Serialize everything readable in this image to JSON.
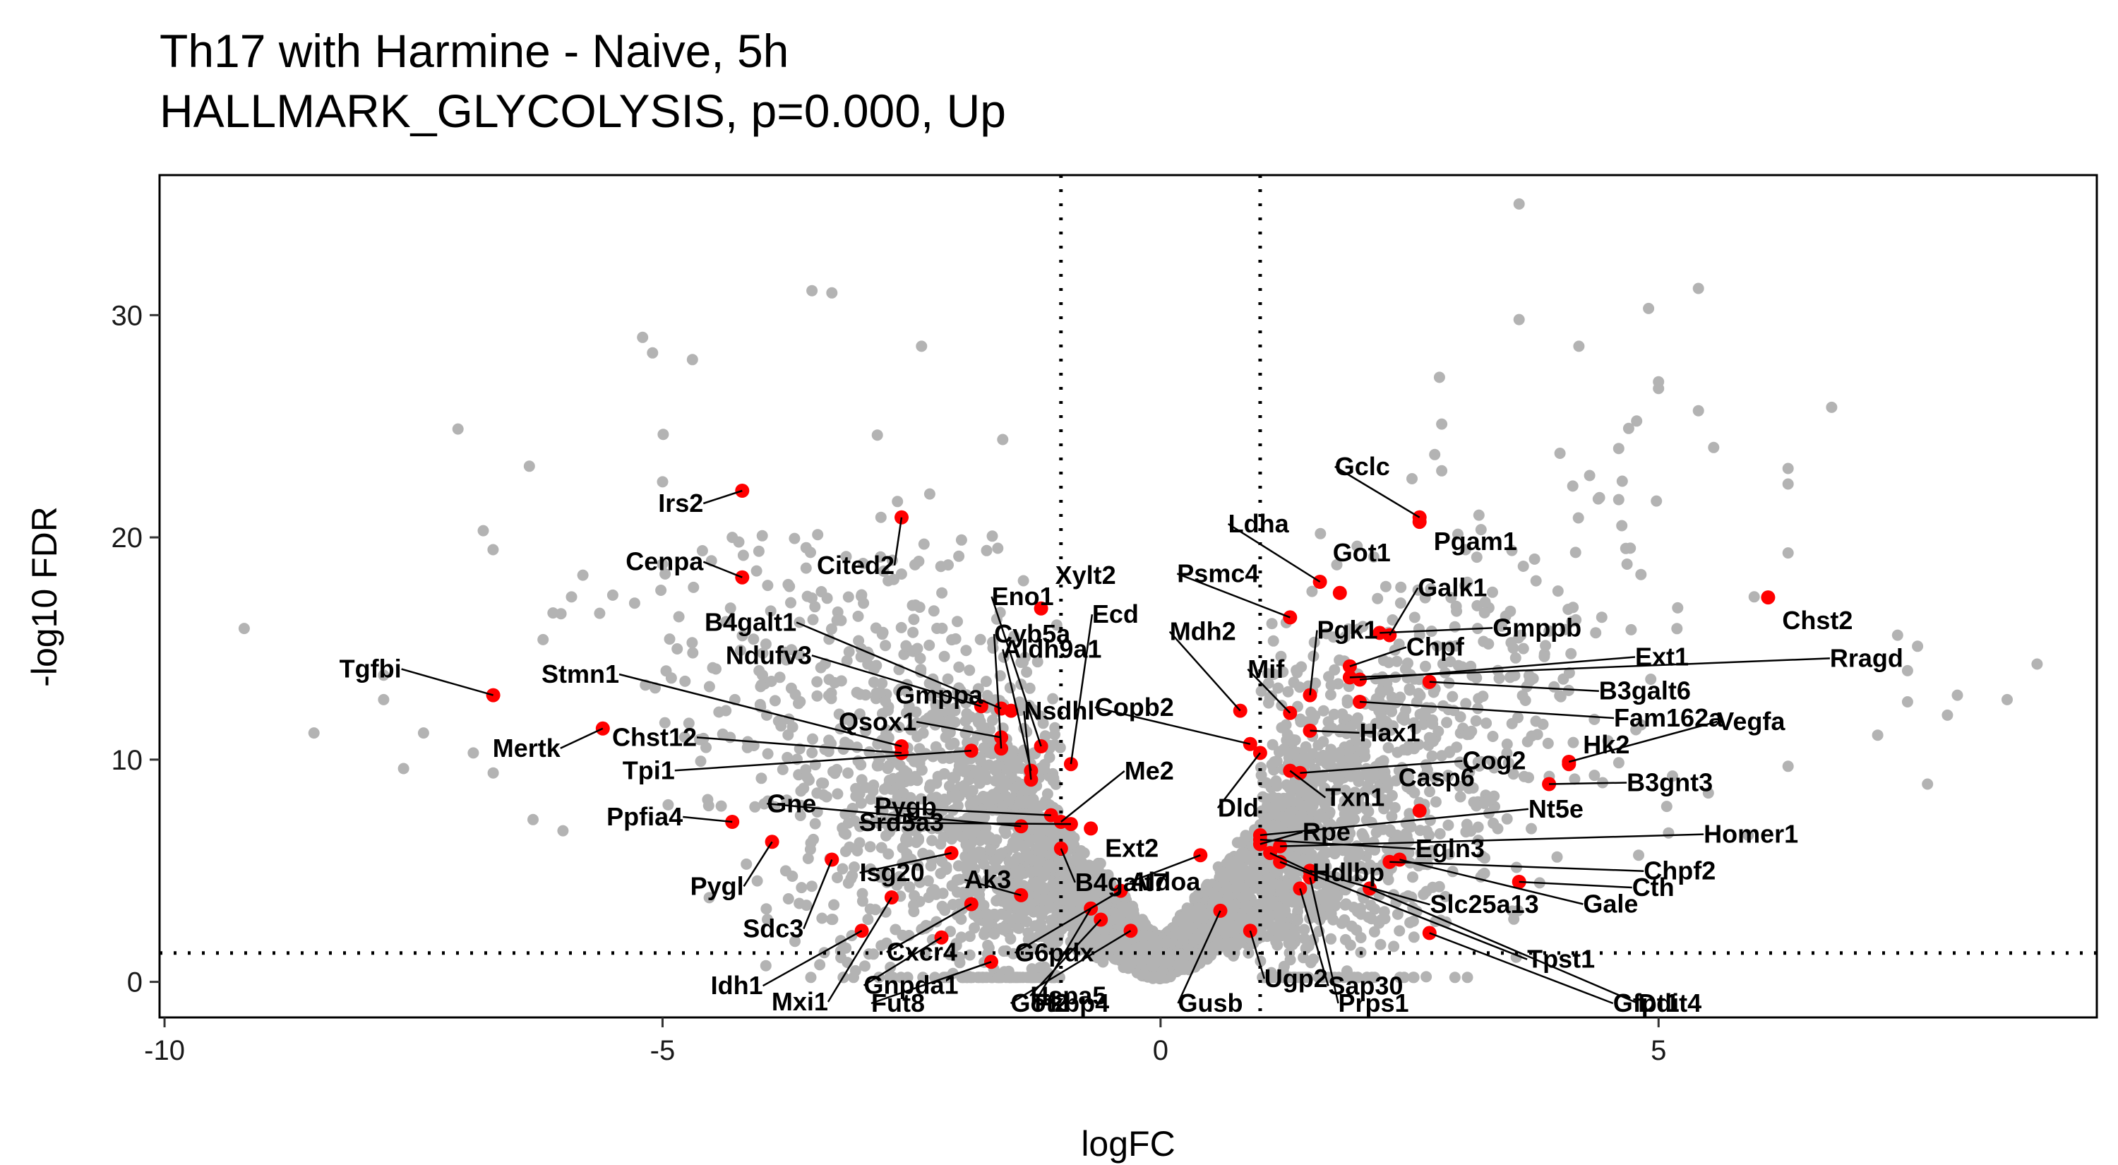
{
  "chart_data": {
    "type": "scatter",
    "title": "Th17 with Harmine - Naive, 5h",
    "subtitle": "HALLMARK_GLYCOLYSIS, p=0.000, Up",
    "xlabel": "logFC",
    "ylabel": "-log10 FDR",
    "xlim": [
      -10.05,
      9.4
    ],
    "ylim": [
      -1.6,
      36.3
    ],
    "xticks": [
      -10,
      -5,
      0,
      5
    ],
    "yticks": [
      0,
      10,
      20,
      30
    ],
    "vlines": [
      -1,
      1
    ],
    "hline": 1.3,
    "grid": false,
    "legend": "none",
    "colors": {
      "background": "#b3b3b3",
      "highlight": "#ff0000",
      "text": "#000000"
    },
    "highlighted_genes": [
      {
        "gene": "Irs2",
        "x": -4.2,
        "y": 22.1
      },
      {
        "gene": "Cenpa",
        "x": -4.2,
        "y": 18.2
      },
      {
        "gene": "Cited2",
        "x": -2.6,
        "y": 20.9
      },
      {
        "gene": "Tgfbi",
        "x": -6.7,
        "y": 12.9
      },
      {
        "gene": "Mertk",
        "x": -5.6,
        "y": 11.4
      },
      {
        "gene": "Ppfia4",
        "x": -4.3,
        "y": 7.2
      },
      {
        "gene": "Pygl",
        "x": -3.9,
        "y": 6.3
      },
      {
        "gene": "Sdc3",
        "x": -3.3,
        "y": 5.5
      },
      {
        "gene": "Idh1",
        "x": -3.0,
        "y": 2.3
      },
      {
        "gene": "Mxi1",
        "x": -2.7,
        "y": 3.8
      },
      {
        "gene": "Gnpda1",
        "x": -2.2,
        "y": 2.0
      },
      {
        "gene": "Isg20",
        "x": -2.1,
        "y": 5.8
      },
      {
        "gene": "Cxcr4",
        "x": -1.9,
        "y": 3.5
      },
      {
        "gene": "Fut8",
        "x": -1.7,
        "y": 0.9
      },
      {
        "gene": "Ak3",
        "x": -1.4,
        "y": 3.9
      },
      {
        "gene": "Gne",
        "x": -1.4,
        "y": 7.0
      },
      {
        "gene": "Stmn1",
        "x": -2.6,
        "y": 10.6
      },
      {
        "gene": "Chst12",
        "x": -2.6,
        "y": 10.3
      },
      {
        "gene": "Tpi1",
        "x": -1.9,
        "y": 10.4
      },
      {
        "gene": "Ndufv3",
        "x": -1.8,
        "y": 12.4
      },
      {
        "gene": "B4galt1",
        "x": -1.6,
        "y": 12.3
      },
      {
        "gene": "Qsox1",
        "x": -1.6,
        "y": 11.0
      },
      {
        "gene": "Gmppa",
        "x": -1.5,
        "y": 12.2
      },
      {
        "gene": "Cyb5a",
        "x": -1.6,
        "y": 10.5
      },
      {
        "gene": "Eno1",
        "x": -1.2,
        "y": 10.6
      },
      {
        "gene": "Xylt2",
        "x": -1.2,
        "y": 16.8
      },
      {
        "gene": "Aldh9a1",
        "x": -1.3,
        "y": 9.5
      },
      {
        "gene": "Nsdhl",
        "x": -1.3,
        "y": 9.1
      },
      {
        "gene": "Pygb",
        "x": -1.1,
        "y": 7.5
      },
      {
        "gene": "Srd5a3",
        "x": -0.9,
        "y": 7.1
      },
      {
        "gene": "Ecd",
        "x": -0.9,
        "y": 9.8
      },
      {
        "gene": "Me2",
        "x": -1.0,
        "y": 7.2
      },
      {
        "gene": "Ext2",
        "x": -0.7,
        "y": 6.9
      },
      {
        "gene": "B4galt7",
        "x": -1.0,
        "y": 6.0
      },
      {
        "gene": "Hspa5",
        "x": -0.6,
        "y": 2.8
      },
      {
        "gene": "Fkbp4",
        "x": -0.7,
        "y": 3.3
      },
      {
        "gene": "G6pdx",
        "x": -0.4,
        "y": 4.1
      },
      {
        "gene": "Got2",
        "x": -0.3,
        "y": 2.3
      },
      {
        "gene": "Aldoa",
        "x": 0.4,
        "y": 5.7
      },
      {
        "gene": "Gusb",
        "x": 0.6,
        "y": 3.2
      },
      {
        "gene": "Ugp2",
        "x": 0.9,
        "y": 2.3
      },
      {
        "gene": "Dld",
        "x": 1.0,
        "y": 10.3
      },
      {
        "gene": "Copb2",
        "x": 0.9,
        "y": 10.7
      },
      {
        "gene": "Mdh2",
        "x": 0.8,
        "y": 12.2
      },
      {
        "gene": "Psmc4",
        "x": 1.3,
        "y": 16.4
      },
      {
        "gene": "Ldha",
        "x": 1.6,
        "y": 18.0
      },
      {
        "gene": "Gclc",
        "x": 2.6,
        "y": 20.9
      },
      {
        "gene": "Got1",
        "x": 1.8,
        "y": 17.5
      },
      {
        "gene": "Pgam1",
        "x": 2.6,
        "y": 20.7
      },
      {
        "gene": "Pgk1",
        "x": 1.5,
        "y": 12.9
      },
      {
        "gene": "Galk1",
        "x": 2.3,
        "y": 15.6
      },
      {
        "gene": "Mif",
        "x": 1.3,
        "y": 12.1
      },
      {
        "gene": "Hax1",
        "x": 1.5,
        "y": 11.3
      },
      {
        "gene": "Txn1",
        "x": 1.3,
        "y": 9.5
      },
      {
        "gene": "Rpe",
        "x": 1.0,
        "y": 6.2
      },
      {
        "gene": "Hdlbp",
        "x": 1.1,
        "y": 5.8
      },
      {
        "gene": "Sap30",
        "x": 1.4,
        "y": 4.2
      },
      {
        "gene": "Prps1",
        "x": 1.5,
        "y": 4.7
      },
      {
        "gene": "Gfpt1",
        "x": 2.7,
        "y": 2.2
      },
      {
        "gene": "Slc25a13",
        "x": 1.5,
        "y": 5.0
      },
      {
        "gene": "Tpst1",
        "x": 1.2,
        "y": 5.4
      },
      {
        "gene": "Ddit4",
        "x": 2.1,
        "y": 4.2
      },
      {
        "gene": "Egln3",
        "x": 1.0,
        "y": 6.4
      },
      {
        "gene": "Gale",
        "x": 2.4,
        "y": 5.5
      },
      {
        "gene": "Chpf",
        "x": 1.9,
        "y": 14.2
      },
      {
        "gene": "Gmppb",
        "x": 2.2,
        "y": 15.7
      },
      {
        "gene": "Ext1",
        "x": 2.0,
        "y": 13.6
      },
      {
        "gene": "B3galt6",
        "x": 2.7,
        "y": 13.5
      },
      {
        "gene": "Fam162a",
        "x": 2.0,
        "y": 12.6
      },
      {
        "gene": "Cog2",
        "x": 1.4,
        "y": 9.4
      },
      {
        "gene": "Casp6",
        "x": 2.6,
        "y": 7.7
      },
      {
        "gene": "Nt5e",
        "x": 1.0,
        "y": 6.6
      },
      {
        "gene": "Chpf2",
        "x": 2.3,
        "y": 5.4
      },
      {
        "gene": "Cth",
        "x": 3.6,
        "y": 4.5
      },
      {
        "gene": "Homer1",
        "x": 1.2,
        "y": 6.1
      },
      {
        "gene": "Hk2",
        "x": 4.1,
        "y": 9.8
      },
      {
        "gene": "B3gnt3",
        "x": 3.9,
        "y": 8.9
      },
      {
        "gene": "Vegfa",
        "x": 4.1,
        "y": 9.9
      },
      {
        "gene": "Rragd",
        "x": 1.9,
        "y": 13.7
      },
      {
        "gene": "Chst2",
        "x": 6.1,
        "y": 17.3
      }
    ]
  }
}
